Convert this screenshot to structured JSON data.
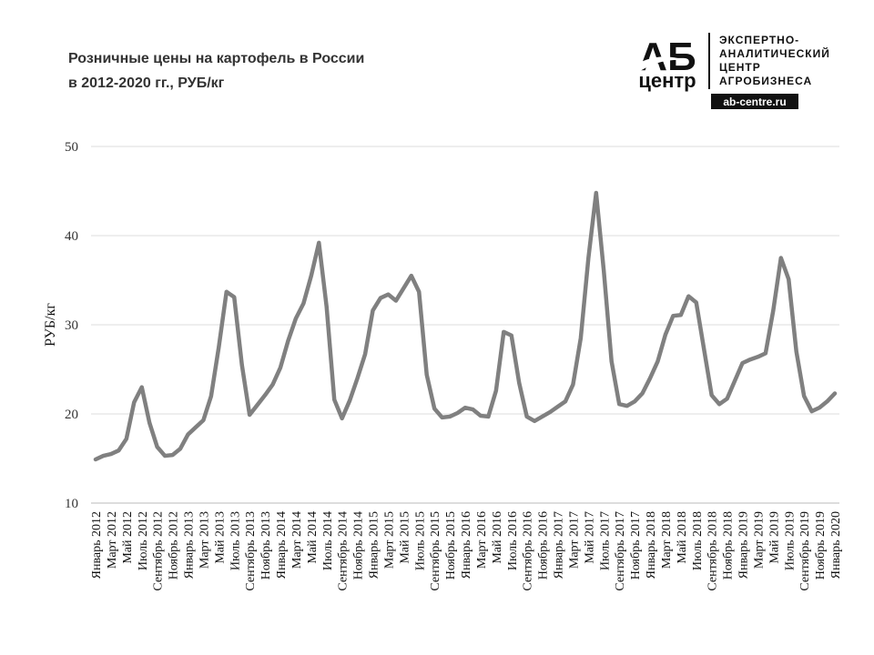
{
  "chart_data": {
    "type": "line",
    "title": [
      "Розничные цены на картофель в России",
      "в 2012-2020 гг., РУБ/кг"
    ],
    "ylabel": "РУБ/кг",
    "logo": {
      "mark": "АБ",
      "mark_sub": "центр",
      "lines": [
        "ЭКСПЕРТНО-",
        "АНАЛИТИЧЕСКИЙ",
        "ЦЕНТР",
        "АГРОБИЗНЕСА"
      ],
      "url": "ab-centre.ru"
    },
    "ylim": [
      10,
      50
    ],
    "yticks": [
      10,
      20,
      30,
      40,
      50
    ],
    "grid": true,
    "categories": [
      "Январь 2012",
      null,
      "Март 2012",
      null,
      "Май 2012",
      null,
      "Июль 2012",
      null,
      "Сентябрь 2012",
      null,
      "Ноябрь 2012",
      null,
      "Январь 2013",
      null,
      "Март 2013",
      null,
      "Май 2013",
      null,
      "Июль 2013",
      null,
      "Сентябрь 2013",
      null,
      "Ноябрь 2013",
      null,
      "Январь 2014",
      null,
      "Март 2014",
      null,
      "Май 2014",
      null,
      "Июль 2014",
      null,
      "Сентябрь 2014",
      null,
      "Ноябрь 2014",
      null,
      "Январь 2015",
      null,
      "Март 2015",
      null,
      "Май 2015",
      null,
      "Июль 2015",
      null,
      "Сентябрь 2015",
      null,
      "Ноябрь 2015",
      null,
      "Январь 2016",
      null,
      "Март 2016",
      null,
      "Май 2016",
      null,
      "Июль 2016",
      null,
      "Сентябрь 2016",
      null,
      "Ноябрь 2016",
      null,
      "Январь 2017",
      null,
      "Март 2017",
      null,
      "Май 2017",
      null,
      "Июль 2017",
      null,
      "Сентябрь 2017",
      null,
      "Ноябрь 2017",
      null,
      "Январь 2018",
      null,
      "Март 2018",
      null,
      "Май 2018",
      null,
      "Июль 2018",
      null,
      "Сентябрь 2018",
      null,
      "Ноябрь 2018",
      null,
      "Январь 2019",
      null,
      "Март 2019",
      null,
      "Май 2019",
      null,
      "Июль 2019",
      null,
      "Сентябрь 2019",
      null,
      "Ноябрь 2019",
      null,
      "Январь 2020"
    ],
    "series": [
      {
        "name": "РУБ/кг",
        "color": "#808080",
        "values": [
          14.9,
          15.3,
          15.5,
          15.9,
          17.2,
          21.3,
          23.0,
          19.0,
          16.3,
          15.3,
          15.4,
          16.1,
          17.7,
          18.5,
          19.3,
          22.0,
          27.5,
          33.7,
          33.1,
          25.5,
          19.9,
          21.0,
          22.1,
          23.3,
          25.2,
          28.2,
          30.7,
          32.4,
          35.5,
          39.2,
          32.0,
          21.6,
          19.5,
          21.5,
          24.0,
          26.7,
          31.6,
          33.0,
          33.4,
          32.7,
          34.1,
          35.5,
          33.7,
          24.4,
          20.6,
          19.6,
          19.7,
          20.1,
          20.7,
          20.5,
          19.8,
          19.7,
          22.6,
          29.2,
          28.8,
          23.5,
          19.7,
          19.2,
          19.7,
          20.2,
          20.8,
          21.4,
          23.3,
          28.5,
          37.5,
          44.8,
          36.0,
          25.9,
          21.1,
          20.9,
          21.4,
          22.3,
          24.0,
          25.9,
          28.9,
          31.0,
          31.1,
          33.2,
          32.5,
          27.3,
          22.1,
          21.1,
          21.7,
          23.7,
          25.7,
          26.1,
          26.4,
          26.8,
          31.6,
          37.5,
          35.1,
          27.0,
          22.0,
          20.3,
          20.7,
          21.4,
          22.3
        ]
      }
    ]
  }
}
